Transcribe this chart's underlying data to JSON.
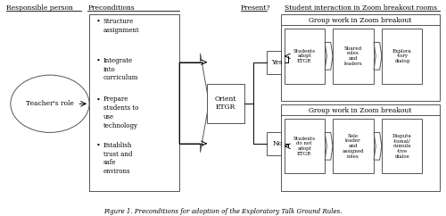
{
  "title": "Figure 1. Preconditions for adoption of the Exploratory Talk Ground Rules.",
  "background_color": "#ffffff",
  "text_color": "#000000",
  "border_color": "#555555",
  "columns": {
    "responsible_person": "Responsible person",
    "preconditions": "Preconditions",
    "present": "Present?",
    "student_interaction": "Student interaction in Zoom breakout rooms"
  },
  "ellipse_text": "Teacher's role",
  "precondition_bullets": [
    "Structure\nassignment",
    "Integrate\ninto\ncurriculum",
    "Prepare\nstudents to\nuse\ntechnology",
    "Establish\ntrust and\nsafe\nenvirons"
  ],
  "orient_text": "Orient\nETGR",
  "yes_label": "Yes",
  "no_label": "No",
  "top_group_header": "Group work in Zoom breakout",
  "bottom_group_header": "Group work in Zoom breakout",
  "top_path": [
    "Students\nadopt\nETGR",
    "Shared\nroles\nand\nleaders",
    "Explora\n-tory\ndialog"
  ],
  "bottom_path": [
    "Students\ndo not\nadopt\nETGR",
    "Sole\nleader\nand\nassigned\nroles",
    "Disputa\n-tional/\ncumula\n-tive\ndialoe"
  ]
}
